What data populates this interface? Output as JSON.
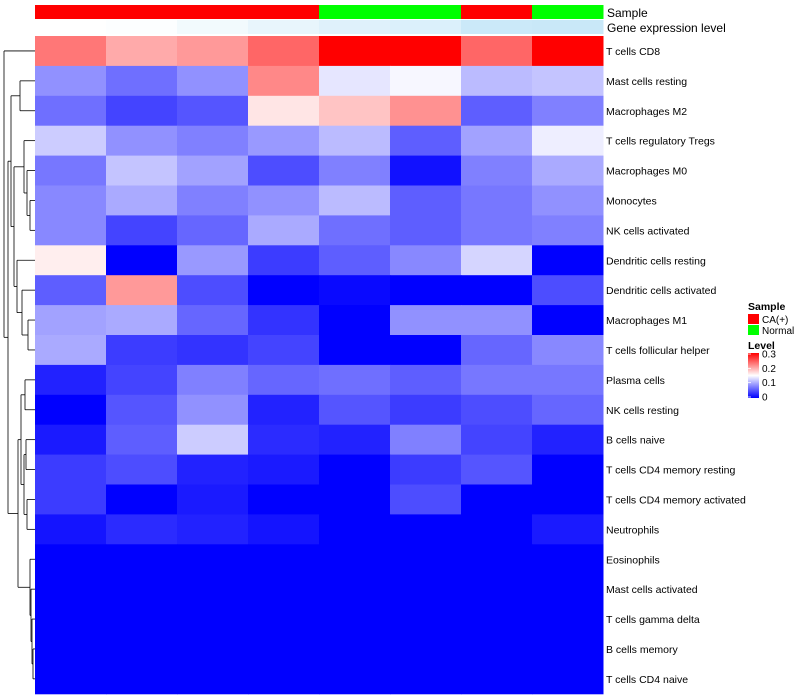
{
  "chart_data": {
    "type": "heatmap",
    "annotation_labels": [
      "Sample",
      "Gene expression level"
    ],
    "samples": [
      "CA(+)",
      "CA(+)",
      "CA(+)",
      "CA(+)",
      "Normal",
      "Normal",
      "CA(+)",
      "Normal"
    ],
    "gene_expression_level": [
      0.0,
      0.02,
      0.1,
      0.18,
      0.25,
      0.28,
      0.4,
      0.42
    ],
    "rows": [
      "T cells CD8",
      "Mast cells resting",
      "Macrophages M2",
      "T cells regulatory  Tregs",
      "Macrophages M0",
      "Monocytes",
      "NK cells activated",
      "Dendritic cells resting",
      "Dendritic cells activated",
      "Macrophages M1",
      "T cells follicular helper",
      "Plasma cells",
      "NK cells resting",
      "B cells naive",
      "T cells CD4 memory resting",
      "T cells CD4 memory activated",
      "Neutrophils",
      "Eosinophils",
      "Mast cells activated",
      "T cells gamma delta",
      "B cells memory",
      "T cells CD4 naive"
    ],
    "values": [
      [
        0.23,
        0.2,
        0.21,
        0.24,
        0.3,
        0.3,
        0.24,
        0.3
      ],
      [
        0.085,
        0.065,
        0.085,
        0.22,
        0.135,
        0.145,
        0.11,
        0.115
      ],
      [
        0.065,
        0.04,
        0.05,
        0.165,
        0.185,
        0.215,
        0.055,
        0.075
      ],
      [
        0.12,
        0.085,
        0.075,
        0.09,
        0.11,
        0.055,
        0.095,
        0.14
      ],
      [
        0.07,
        0.115,
        0.095,
        0.045,
        0.075,
        0.01,
        0.075,
        0.1
      ],
      [
        0.08,
        0.1,
        0.075,
        0.085,
        0.11,
        0.055,
        0.07,
        0.085
      ],
      [
        0.08,
        0.04,
        0.06,
        0.1,
        0.065,
        0.055,
        0.07,
        0.075
      ],
      [
        0.16,
        0.0,
        0.09,
        0.035,
        0.055,
        0.08,
        0.125,
        0.0
      ],
      [
        0.055,
        0.21,
        0.045,
        0.0,
        0.005,
        0.0,
        0.0,
        0.045
      ],
      [
        0.095,
        0.1,
        0.06,
        0.03,
        0.0,
        0.085,
        0.085,
        0.0
      ],
      [
        0.1,
        0.035,
        0.03,
        0.04,
        0.0,
        0.0,
        0.06,
        0.08
      ],
      [
        0.02,
        0.04,
        0.075,
        0.06,
        0.065,
        0.055,
        0.07,
        0.07
      ],
      [
        0.0,
        0.05,
        0.085,
        0.02,
        0.05,
        0.035,
        0.045,
        0.06
      ],
      [
        0.015,
        0.055,
        0.12,
        0.025,
        0.02,
        0.075,
        0.04,
        0.02
      ],
      [
        0.035,
        0.045,
        0.02,
        0.015,
        0.0,
        0.035,
        0.05,
        0.0
      ],
      [
        0.035,
        0.0,
        0.015,
        0.0,
        0.0,
        0.045,
        0.0,
        0.0
      ],
      [
        0.012,
        0.025,
        0.02,
        0.012,
        0.0,
        0.0,
        0.0,
        0.015
      ],
      [
        0.0,
        0.0,
        0.0,
        0.0,
        0.0,
        0.0,
        0.0,
        0.0
      ],
      [
        0.0,
        0.0,
        0.0,
        0.0,
        0.0,
        0.0,
        0.0,
        0.0
      ],
      [
        0.0,
        0.0,
        0.0,
        0.0,
        0.0,
        0.0,
        0.0,
        0.0
      ],
      [
        0.0,
        0.0,
        0.0,
        0.0,
        0.0,
        0.0,
        0.0,
        0.0
      ],
      [
        0.0,
        0.0,
        0.0,
        0.0,
        0.0,
        0.0,
        0.0,
        0.0
      ]
    ],
    "color_scale": {
      "min": 0,
      "max": 0.3,
      "colors": [
        "#0000ff",
        "#ffffff",
        "#ff0000"
      ]
    },
    "legend": {
      "sample_title": "Sample",
      "sample_entries": [
        {
          "label": "CA(+)",
          "color": "#ff0000"
        },
        {
          "label": "Normal",
          "color": "#00ff00"
        }
      ],
      "level_title": "Level",
      "level_ticks": [
        "0.3",
        "0.2",
        "0.1",
        "0"
      ],
      "placement": "right"
    },
    "dendrogram": "rows"
  }
}
